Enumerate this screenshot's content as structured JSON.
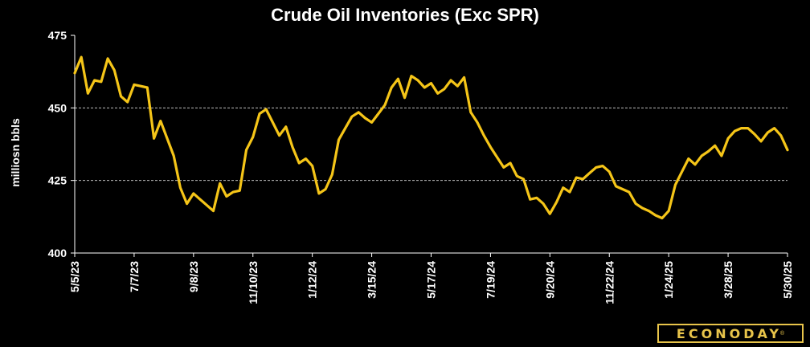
{
  "brand": {
    "name": "ECONODAY",
    "mark": "®",
    "color": "#e8c44a"
  },
  "chart_data": {
    "type": "line",
    "title": "Crude Oil Inventories (Exc SPR)",
    "ylabel": "milliosn bbls",
    "xlabel": "",
    "ylim": [
      400,
      475
    ],
    "yticks": [
      400,
      425,
      450,
      475
    ],
    "xtick_labels": [
      "5/5/23",
      "7/7/23",
      "9/8/23",
      "11/10/23",
      "1/12/24",
      "3/15/24",
      "5/17/24",
      "7/19/24",
      "9/20/24",
      "11/22/24",
      "1/24/25",
      "3/28/25",
      "5/30/25"
    ],
    "grid": "horizontal dashed",
    "line_color": "#f5c518",
    "series": [
      {
        "values": [
          462,
          467.5,
          455,
          459.5,
          459,
          467,
          463,
          454,
          452,
          458,
          457.5,
          457,
          439.5,
          445.5,
          439.5,
          433.5,
          422.5,
          417,
          420.5,
          418.5,
          416.5,
          414.5,
          424,
          419.5,
          421,
          421.5,
          435.5,
          440,
          448,
          449.5,
          445,
          440.5,
          443.5,
          436.5,
          431,
          432.5,
          430,
          420.5,
          422,
          427,
          439,
          443,
          447,
          448.5,
          446.5,
          445,
          448,
          451,
          457,
          460,
          453.5,
          461,
          459.5,
          457,
          458.5,
          455,
          456.5,
          459.5,
          457.5,
          460.5,
          448.5,
          445,
          440.5,
          436.5,
          433,
          429.5,
          431,
          426.5,
          425.5,
          418.5,
          419,
          417,
          413.5,
          417.5,
          422.5,
          421,
          426,
          425.5,
          427.5,
          429.5,
          430,
          428,
          423,
          422,
          421,
          417,
          415.5,
          414.5,
          413,
          412,
          414.5,
          423.5,
          428,
          432.5,
          430.5,
          433.5,
          435,
          437,
          433.5,
          439.5,
          442,
          443,
          443,
          441,
          438.5,
          441.5,
          443,
          440.5,
          435.5
        ]
      }
    ]
  }
}
